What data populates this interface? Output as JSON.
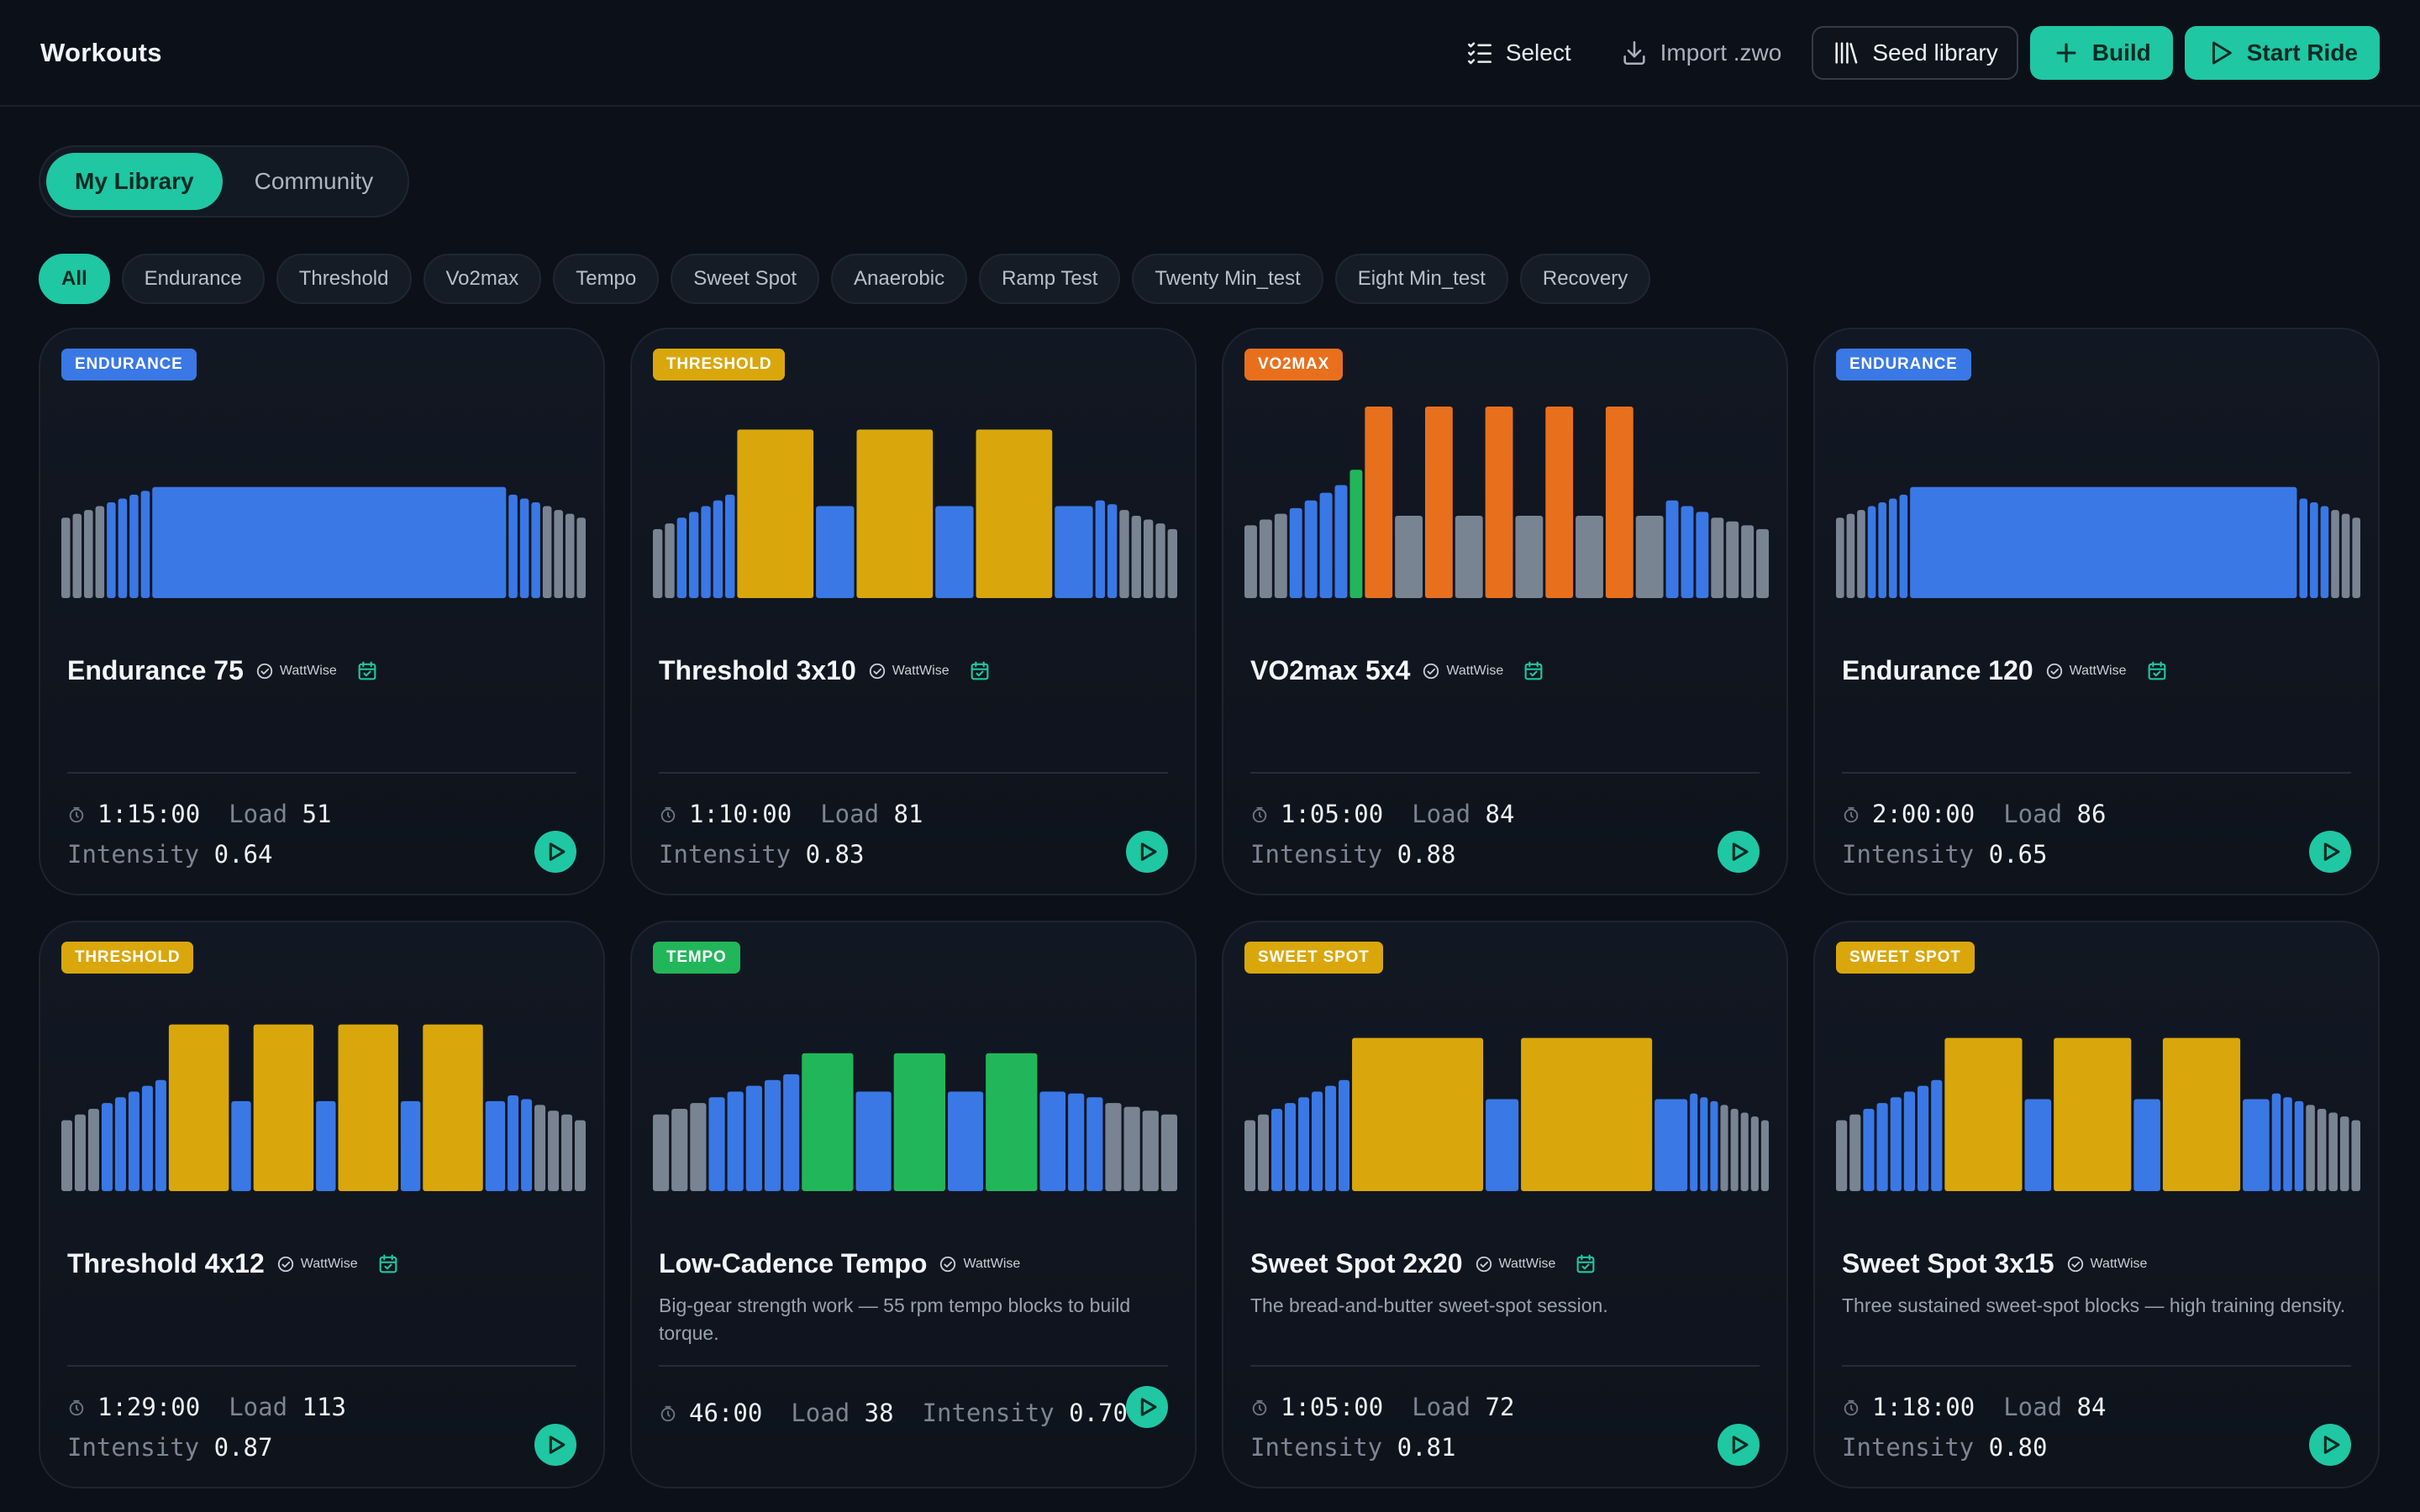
{
  "header": {
    "title": "Workouts",
    "select_label": "Select",
    "import_label": "Import .zwo",
    "seed_label": "Seed library",
    "build_label": "Build",
    "start_label": "Start Ride"
  },
  "segment": {
    "items": [
      "My Library",
      "Community"
    ],
    "active": 0
  },
  "filters": {
    "items": [
      "All",
      "Endurance",
      "Threshold",
      "Vo2max",
      "Tempo",
      "Sweet Spot",
      "Anaerobic",
      "Ramp Test",
      "Twenty Min_test",
      "Eight Min_test",
      "Recovery"
    ],
    "active": 0
  },
  "labels": {
    "load": "Load",
    "intensity": "Intensity"
  },
  "colors": {
    "accent": "#1fc7a3",
    "zone_recovery": "#798493",
    "zone_endurance": "#3a78e6",
    "zone_tempo": "#22b65a",
    "zone_threshold": "#d9a70c",
    "zone_vo2max": "#e8701d",
    "badge_endurance": "#3a78e6",
    "badge_threshold": "#d9a70c",
    "badge_vo2max": "#e8701d",
    "badge_tempo": "#22b65a",
    "badge_sweetspot": "#d9a70c"
  },
  "workouts": [
    {
      "badge": "ENDURANCE",
      "badge_color": "#3a78e6",
      "title": "Endurance 75",
      "author": "WattWise",
      "scheduled": true,
      "description": "",
      "duration": "1:15:00",
      "load": "51",
      "intensity": "0.64",
      "profile": [
        {
          "z": "r",
          "p": 0.42,
          "d": 1
        },
        {
          "z": "r",
          "p": 0.44,
          "d": 1
        },
        {
          "z": "r",
          "p": 0.46,
          "d": 1
        },
        {
          "z": "r",
          "p": 0.48,
          "d": 1
        },
        {
          "z": "e",
          "p": 0.5,
          "d": 1
        },
        {
          "z": "e",
          "p": 0.52,
          "d": 1
        },
        {
          "z": "e",
          "p": 0.54,
          "d": 1
        },
        {
          "z": "e",
          "p": 0.56,
          "d": 1
        },
        {
          "z": "e",
          "p": 0.58,
          "d": 40
        },
        {
          "z": "e",
          "p": 0.54,
          "d": 1
        },
        {
          "z": "e",
          "p": 0.52,
          "d": 1
        },
        {
          "z": "e",
          "p": 0.5,
          "d": 1
        },
        {
          "z": "r",
          "p": 0.48,
          "d": 1
        },
        {
          "z": "r",
          "p": 0.46,
          "d": 1
        },
        {
          "z": "r",
          "p": 0.44,
          "d": 1
        },
        {
          "z": "r",
          "p": 0.42,
          "d": 1
        }
      ]
    },
    {
      "badge": "THRESHOLD",
      "badge_color": "#d9a70c",
      "title": "Threshold 3x10",
      "author": "WattWise",
      "scheduled": true,
      "description": "",
      "duration": "1:10:00",
      "load": "81",
      "intensity": "0.83",
      "profile": [
        {
          "z": "r",
          "p": 0.36,
          "d": 1
        },
        {
          "z": "r",
          "p": 0.39,
          "d": 1
        },
        {
          "z": "e",
          "p": 0.42,
          "d": 1
        },
        {
          "z": "e",
          "p": 0.45,
          "d": 1
        },
        {
          "z": "e",
          "p": 0.48,
          "d": 1
        },
        {
          "z": "e",
          "p": 0.51,
          "d": 1
        },
        {
          "z": "e",
          "p": 0.54,
          "d": 1
        },
        {
          "z": "t",
          "p": 0.88,
          "d": 8
        },
        {
          "z": "e",
          "p": 0.48,
          "d": 4
        },
        {
          "z": "t",
          "p": 0.88,
          "d": 8
        },
        {
          "z": "e",
          "p": 0.48,
          "d": 4
        },
        {
          "z": "t",
          "p": 0.88,
          "d": 8
        },
        {
          "z": "e",
          "p": 0.48,
          "d": 4
        },
        {
          "z": "e",
          "p": 0.51,
          "d": 1
        },
        {
          "z": "e",
          "p": 0.49,
          "d": 1
        },
        {
          "z": "r",
          "p": 0.46,
          "d": 1
        },
        {
          "z": "r",
          "p": 0.43,
          "d": 1
        },
        {
          "z": "r",
          "p": 0.41,
          "d": 1
        },
        {
          "z": "r",
          "p": 0.39,
          "d": 1
        },
        {
          "z": "r",
          "p": 0.36,
          "d": 1
        }
      ]
    },
    {
      "badge": "VO2MAX",
      "badge_color": "#e8701d",
      "title": "VO2max 5x4",
      "author": "WattWise",
      "scheduled": true,
      "description": "",
      "duration": "1:05:00",
      "load": "84",
      "intensity": "0.88",
      "profile": [
        {
          "z": "r",
          "p": 0.38,
          "d": 1
        },
        {
          "z": "r",
          "p": 0.41,
          "d": 1
        },
        {
          "z": "r",
          "p": 0.44,
          "d": 1
        },
        {
          "z": "e",
          "p": 0.47,
          "d": 1
        },
        {
          "z": "e",
          "p": 0.51,
          "d": 1
        },
        {
          "z": "e",
          "p": 0.55,
          "d": 1
        },
        {
          "z": "e",
          "p": 0.59,
          "d": 1
        },
        {
          "z": "s",
          "p": 0.67,
          "d": 1
        },
        {
          "z": "v",
          "p": 1.0,
          "d": 2.2
        },
        {
          "z": "r",
          "p": 0.43,
          "d": 2.2
        },
        {
          "z": "v",
          "p": 1.0,
          "d": 2.2
        },
        {
          "z": "r",
          "p": 0.43,
          "d": 2.2
        },
        {
          "z": "v",
          "p": 1.0,
          "d": 2.2
        },
        {
          "z": "r",
          "p": 0.43,
          "d": 2.2
        },
        {
          "z": "v",
          "p": 1.0,
          "d": 2.2
        },
        {
          "z": "r",
          "p": 0.43,
          "d": 2.2
        },
        {
          "z": "v",
          "p": 1.0,
          "d": 2.2
        },
        {
          "z": "r",
          "p": 0.43,
          "d": 2.2
        },
        {
          "z": "e",
          "p": 0.51,
          "d": 1
        },
        {
          "z": "e",
          "p": 0.48,
          "d": 1
        },
        {
          "z": "e",
          "p": 0.45,
          "d": 1
        },
        {
          "z": "r",
          "p": 0.42,
          "d": 1
        },
        {
          "z": "r",
          "p": 0.4,
          "d": 1
        },
        {
          "z": "r",
          "p": 0.38,
          "d": 1
        },
        {
          "z": "r",
          "p": 0.36,
          "d": 1
        }
      ]
    },
    {
      "badge": "ENDURANCE",
      "badge_color": "#3a78e6",
      "title": "Endurance 120",
      "author": "WattWise",
      "scheduled": true,
      "description": "",
      "duration": "2:00:00",
      "load": "86",
      "intensity": "0.65",
      "profile": [
        {
          "z": "r",
          "p": 0.42,
          "d": 1
        },
        {
          "z": "r",
          "p": 0.44,
          "d": 1
        },
        {
          "z": "r",
          "p": 0.46,
          "d": 1
        },
        {
          "z": "e",
          "p": 0.48,
          "d": 1
        },
        {
          "z": "e",
          "p": 0.5,
          "d": 1
        },
        {
          "z": "e",
          "p": 0.52,
          "d": 1
        },
        {
          "z": "e",
          "p": 0.54,
          "d": 1
        },
        {
          "z": "e",
          "p": 0.58,
          "d": 48
        },
        {
          "z": "e",
          "p": 0.52,
          "d": 1
        },
        {
          "z": "e",
          "p": 0.5,
          "d": 1
        },
        {
          "z": "e",
          "p": 0.48,
          "d": 1
        },
        {
          "z": "r",
          "p": 0.46,
          "d": 1
        },
        {
          "z": "r",
          "p": 0.44,
          "d": 1
        },
        {
          "z": "r",
          "p": 0.42,
          "d": 1
        }
      ]
    },
    {
      "badge": "THRESHOLD",
      "badge_color": "#d9a70c",
      "title": "Threshold 4x12",
      "author": "WattWise",
      "scheduled": true,
      "description": "",
      "duration": "1:29:00",
      "load": "113",
      "intensity": "0.87",
      "profile": [
        {
          "z": "r",
          "p": 0.37,
          "d": 1
        },
        {
          "z": "r",
          "p": 0.4,
          "d": 1
        },
        {
          "z": "r",
          "p": 0.43,
          "d": 1
        },
        {
          "z": "e",
          "p": 0.46,
          "d": 1
        },
        {
          "z": "e",
          "p": 0.49,
          "d": 1
        },
        {
          "z": "e",
          "p": 0.52,
          "d": 1
        },
        {
          "z": "e",
          "p": 0.55,
          "d": 1
        },
        {
          "z": "e",
          "p": 0.58,
          "d": 1
        },
        {
          "z": "t",
          "p": 0.87,
          "d": 5.5
        },
        {
          "z": "e",
          "p": 0.47,
          "d": 1.8
        },
        {
          "z": "t",
          "p": 0.87,
          "d": 5.5
        },
        {
          "z": "e",
          "p": 0.47,
          "d": 1.8
        },
        {
          "z": "t",
          "p": 0.87,
          "d": 5.5
        },
        {
          "z": "e",
          "p": 0.47,
          "d": 1.8
        },
        {
          "z": "t",
          "p": 0.87,
          "d": 5.5
        },
        {
          "z": "e",
          "p": 0.47,
          "d": 1.8
        },
        {
          "z": "e",
          "p": 0.5,
          "d": 1
        },
        {
          "z": "e",
          "p": 0.48,
          "d": 1
        },
        {
          "z": "r",
          "p": 0.45,
          "d": 1
        },
        {
          "z": "r",
          "p": 0.42,
          "d": 1
        },
        {
          "z": "r",
          "p": 0.4,
          "d": 1
        },
        {
          "z": "r",
          "p": 0.37,
          "d": 1
        }
      ]
    },
    {
      "badge": "TEMPO",
      "badge_color": "#22b65a",
      "title": "Low-Cadence Tempo",
      "author": "WattWise",
      "scheduled": false,
      "description": "Big-gear strength work — 55 rpm tempo blocks to build torque.",
      "duration": "46:00",
      "load": "38",
      "intensity": "0.70",
      "profile": [
        {
          "z": "r",
          "p": 0.4,
          "d": 1
        },
        {
          "z": "r",
          "p": 0.43,
          "d": 1
        },
        {
          "z": "r",
          "p": 0.46,
          "d": 1
        },
        {
          "z": "e",
          "p": 0.49,
          "d": 1
        },
        {
          "z": "e",
          "p": 0.52,
          "d": 1
        },
        {
          "z": "e",
          "p": 0.55,
          "d": 1
        },
        {
          "z": "e",
          "p": 0.58,
          "d": 1
        },
        {
          "z": "e",
          "p": 0.61,
          "d": 1
        },
        {
          "z": "s",
          "p": 0.72,
          "d": 3.2
        },
        {
          "z": "e",
          "p": 0.52,
          "d": 2.2
        },
        {
          "z": "s",
          "p": 0.72,
          "d": 3.2
        },
        {
          "z": "e",
          "p": 0.52,
          "d": 2.2
        },
        {
          "z": "s",
          "p": 0.72,
          "d": 3.2
        },
        {
          "z": "e",
          "p": 0.52,
          "d": 1.6
        },
        {
          "z": "e",
          "p": 0.51,
          "d": 1
        },
        {
          "z": "e",
          "p": 0.49,
          "d": 1
        },
        {
          "z": "r",
          "p": 0.46,
          "d": 1
        },
        {
          "z": "r",
          "p": 0.44,
          "d": 1
        },
        {
          "z": "r",
          "p": 0.42,
          "d": 1
        },
        {
          "z": "r",
          "p": 0.4,
          "d": 1
        }
      ]
    },
    {
      "badge": "SWEET SPOT",
      "badge_color": "#d9a70c",
      "title": "Sweet Spot 2x20",
      "author": "WattWise",
      "scheduled": true,
      "description": "The bread-and-butter sweet-spot session.",
      "duration": "1:05:00",
      "load": "72",
      "intensity": "0.81",
      "profile": [
        {
          "z": "r",
          "p": 0.37,
          "d": 1
        },
        {
          "z": "r",
          "p": 0.4,
          "d": 1
        },
        {
          "z": "e",
          "p": 0.43,
          "d": 1
        },
        {
          "z": "e",
          "p": 0.46,
          "d": 1
        },
        {
          "z": "e",
          "p": 0.49,
          "d": 1
        },
        {
          "z": "e",
          "p": 0.52,
          "d": 1
        },
        {
          "z": "e",
          "p": 0.55,
          "d": 1
        },
        {
          "z": "e",
          "p": 0.58,
          "d": 1
        },
        {
          "z": "t",
          "p": 0.8,
          "d": 12
        },
        {
          "z": "e",
          "p": 0.48,
          "d": 3
        },
        {
          "z": "t",
          "p": 0.8,
          "d": 12
        },
        {
          "z": "e",
          "p": 0.48,
          "d": 3
        },
        {
          "z": "e",
          "p": 0.51,
          "d": 0.7
        },
        {
          "z": "e",
          "p": 0.49,
          "d": 0.7
        },
        {
          "z": "e",
          "p": 0.47,
          "d": 0.7
        },
        {
          "z": "r",
          "p": 0.45,
          "d": 0.7
        },
        {
          "z": "r",
          "p": 0.43,
          "d": 0.7
        },
        {
          "z": "r",
          "p": 0.41,
          "d": 0.7
        },
        {
          "z": "r",
          "p": 0.39,
          "d": 0.7
        },
        {
          "z": "r",
          "p": 0.37,
          "d": 0.7
        }
      ]
    },
    {
      "badge": "SWEET SPOT",
      "badge_color": "#d9a70c",
      "title": "Sweet Spot 3x15",
      "author": "WattWise",
      "scheduled": false,
      "description": "Three sustained sweet-spot blocks — high training density.",
      "duration": "1:18:00",
      "load": "84",
      "intensity": "0.80",
      "profile": [
        {
          "z": "r",
          "p": 0.37,
          "d": 1
        },
        {
          "z": "r",
          "p": 0.4,
          "d": 1
        },
        {
          "z": "e",
          "p": 0.43,
          "d": 1
        },
        {
          "z": "e",
          "p": 0.46,
          "d": 1
        },
        {
          "z": "e",
          "p": 0.49,
          "d": 1
        },
        {
          "z": "e",
          "p": 0.52,
          "d": 1
        },
        {
          "z": "e",
          "p": 0.55,
          "d": 1
        },
        {
          "z": "e",
          "p": 0.58,
          "d": 1
        },
        {
          "z": "t",
          "p": 0.8,
          "d": 7
        },
        {
          "z": "e",
          "p": 0.48,
          "d": 2.4
        },
        {
          "z": "t",
          "p": 0.8,
          "d": 7
        },
        {
          "z": "e",
          "p": 0.48,
          "d": 2.4
        },
        {
          "z": "t",
          "p": 0.8,
          "d": 7
        },
        {
          "z": "e",
          "p": 0.48,
          "d": 2.4
        },
        {
          "z": "e",
          "p": 0.51,
          "d": 0.8
        },
        {
          "z": "e",
          "p": 0.49,
          "d": 0.8
        },
        {
          "z": "e",
          "p": 0.47,
          "d": 0.8
        },
        {
          "z": "r",
          "p": 0.45,
          "d": 0.8
        },
        {
          "z": "r",
          "p": 0.43,
          "d": 0.8
        },
        {
          "z": "r",
          "p": 0.41,
          "d": 0.8
        },
        {
          "z": "r",
          "p": 0.39,
          "d": 0.8
        },
        {
          "z": "r",
          "p": 0.37,
          "d": 0.8
        }
      ]
    }
  ]
}
